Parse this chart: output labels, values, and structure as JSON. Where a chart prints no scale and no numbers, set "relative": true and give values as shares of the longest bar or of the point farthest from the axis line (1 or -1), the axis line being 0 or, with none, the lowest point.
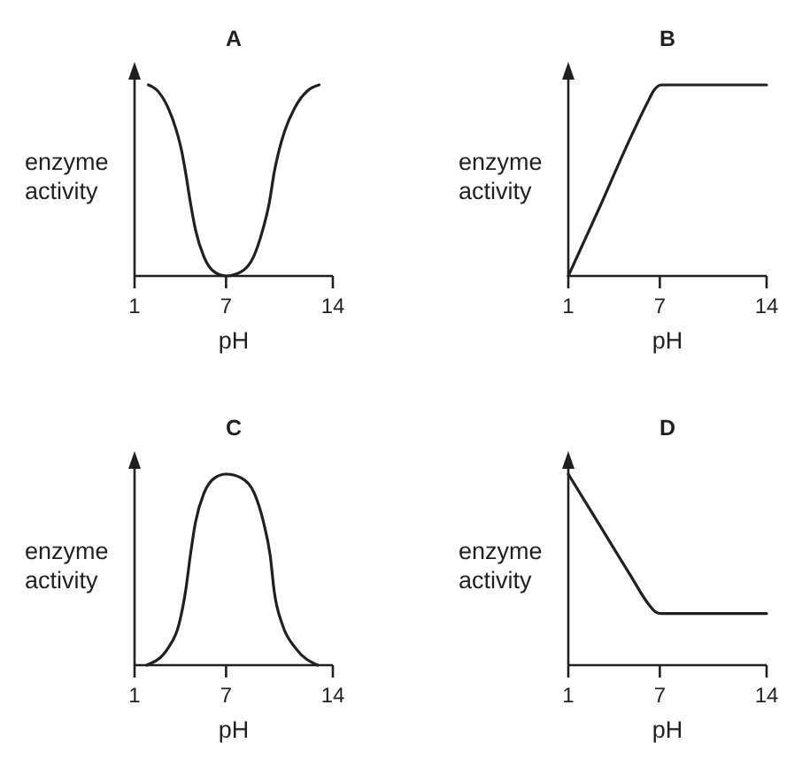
{
  "chart_data": [
    {
      "type": "line",
      "title": "A",
      "xlabel": "pH",
      "ylabel": "enzyme activity",
      "relative": true,
      "xlim": [
        1,
        14
      ],
      "xticks": [
        1,
        7,
        14
      ],
      "x": [
        1.9,
        2.5,
        3.2,
        3.75,
        4.1,
        4.35,
        4.65,
        5.0,
        5.55,
        6.25,
        7.0,
        7.95,
        8.8,
        9.4,
        9.85,
        10.15,
        10.45,
        10.85,
        11.5,
        12.35,
        13.1
      ],
      "series": [
        {
          "color": "#231f20",
          "values": [
            1,
            0.97,
            0.88,
            0.76,
            0.65,
            0.54,
            0.39,
            0.24,
            0.1,
            0.02,
            0,
            0.02,
            0.1,
            0.24,
            0.39,
            0.54,
            0.65,
            0.76,
            0.88,
            0.97,
            1
          ]
        }
      ]
    },
    {
      "type": "line",
      "title": "B",
      "xlabel": "pH",
      "ylabel": "enzyme activity",
      "relative": true,
      "xlim": [
        1,
        14
      ],
      "xticks": [
        1,
        7,
        14
      ],
      "x": [
        1,
        3,
        5,
        6.2,
        6.6,
        7.1,
        14
      ],
      "series": [
        {
          "color": "#231f20",
          "values": [
            0,
            0.35,
            0.71,
            0.91,
            0.97,
            1,
            1
          ]
        }
      ]
    },
    {
      "type": "line",
      "title": "C",
      "xlabel": "pH",
      "ylabel": "enzyme activity",
      "relative": true,
      "xlim": [
        1,
        14
      ],
      "xticks": [
        1,
        7,
        14
      ],
      "x": [
        1.8,
        3.2,
        3.9,
        4.35,
        4.65,
        5.0,
        5.55,
        6.25,
        7.0,
        8.0,
        8.85,
        9.45,
        9.9,
        10.15,
        10.7,
        11.55,
        13.0
      ],
      "series": [
        {
          "color": "#231f20",
          "values": [
            0,
            0.09,
            0.21,
            0.39,
            0.57,
            0.75,
            0.9,
            0.98,
            1,
            0.98,
            0.9,
            0.75,
            0.57,
            0.39,
            0.21,
            0.09,
            0
          ]
        }
      ]
    },
    {
      "type": "line",
      "title": "D",
      "xlabel": "pH",
      "ylabel": "enzyme activity",
      "relative": true,
      "xlim": [
        1,
        14
      ],
      "xticks": [
        1,
        7,
        14
      ],
      "x": [
        1,
        3,
        5,
        6.35,
        6.7,
        7.1,
        14
      ],
      "series": [
        {
          "color": "#231f20",
          "values": [
            1,
            0.74,
            0.48,
            0.31,
            0.28,
            0.27,
            0.27
          ]
        }
      ]
    }
  ]
}
